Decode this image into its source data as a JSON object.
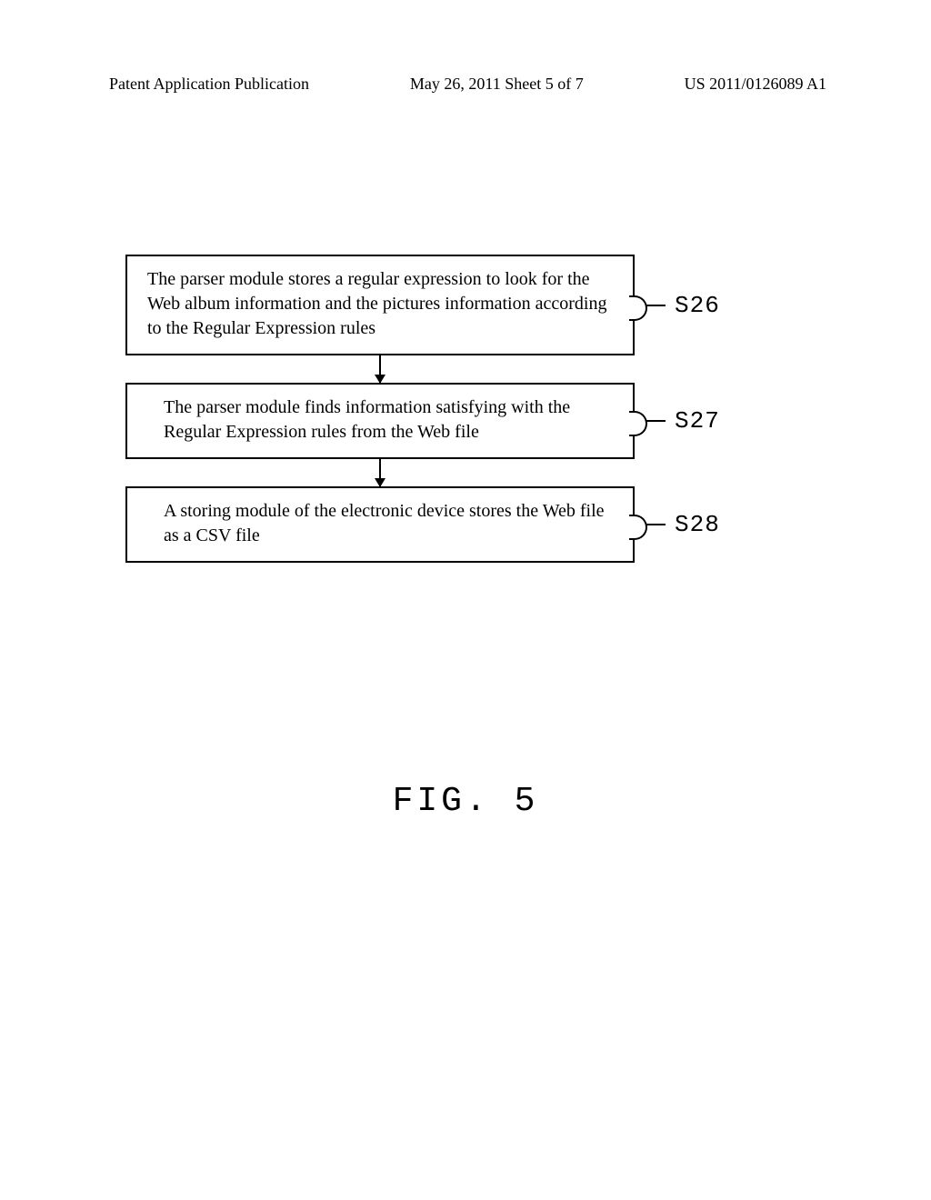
{
  "header": {
    "left": "Patent Application Publication",
    "center": "May 26, 2011  Sheet 5 of 7",
    "right": "US 2011/0126089 A1"
  },
  "flow": {
    "type": "flowchart",
    "box_border_color": "#000000",
    "box_border_width": 2,
    "background_color": "#ffffff",
    "text_color": "#000000",
    "body_fontsize": 20,
    "label_fontsize": 26,
    "steps": [
      {
        "id": "S26",
        "text": "The parser module stores a regular expression to look for the Web album information and the pictures information according to the Regular Expression rules"
      },
      {
        "id": "S27",
        "text": "The parser module finds information satisfying with the Regular Expression rules from the Web file"
      },
      {
        "id": "S28",
        "text": "A storing module of the electronic device stores the Web file as a CSV file"
      }
    ]
  },
  "caption": "FIG. 5"
}
